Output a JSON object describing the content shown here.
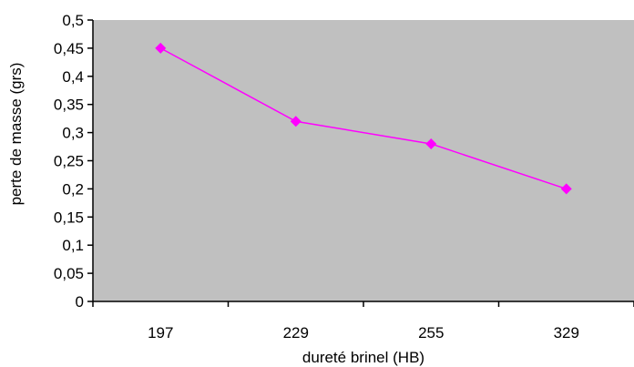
{
  "chart_data": {
    "type": "line",
    "categories": [
      "197",
      "229",
      "255",
      "329"
    ],
    "series": [
      {
        "values": [
          0.45,
          0.32,
          0.28,
          0.2
        ],
        "color": "#FF00FF",
        "marker": "diamond"
      }
    ],
    "xlabel": "dureté brinel (HB)",
    "ylabel": "perte de masse (grs)",
    "ylim": [
      0,
      0.5
    ],
    "y_tick_values": [
      0,
      0.05,
      0.1,
      0.15,
      0.2,
      0.25,
      0.3,
      0.35,
      0.4,
      0.45,
      0.5
    ],
    "y_tick_labels": [
      "0",
      "0,05",
      "0,1",
      "0,15",
      "0,2",
      "0,25",
      "0,3",
      "0,35",
      "0,4",
      "0,45",
      "0,5"
    ],
    "grid": false,
    "legend": "none",
    "plot_background": "#C0C0C0"
  }
}
